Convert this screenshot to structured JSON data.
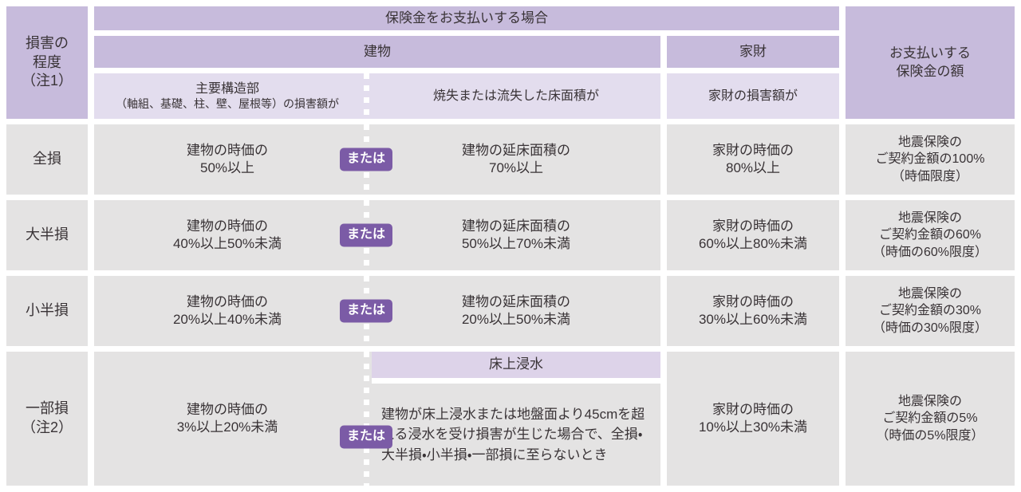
{
  "colors": {
    "header_purple": "#c7bbdc",
    "subheader_purple": "#e3ddee",
    "flood_header_purple": "#ddd3e9",
    "cell_gray": "#e4e3e3",
    "badge_purple": "#7b5ba6",
    "text": "#393336"
  },
  "header": {
    "damage_degree": "損害の\n程度\n（注1）",
    "payment_case": "保険金をお支払いする場合",
    "building": "建物",
    "household": "家財",
    "building_sub_main": "主要構造部",
    "building_sub_detail": "（軸組、基礎、柱、壁、屋根等）の損害額が",
    "building_sub_floor": "焼失または流失した床面積が",
    "household_sub": "家財の損害額が",
    "payout": "お支払いする\n保険金の額"
  },
  "or_label": "または",
  "rows": [
    {
      "label": "全損",
      "building_damage": "建物の時価の\n50%以上",
      "floor_area": "建物の延床面積の\n70%以上",
      "household": "家財の時価の\n80%以上",
      "payout": "地震保険の\nご契約金額の100%\n（時価限度）"
    },
    {
      "label": "大半損",
      "building_damage": "建物の時価の\n40%以上50%未満",
      "floor_area": "建物の延床面積の\n50%以上70%未満",
      "household": "家財の時価の\n60%以上80%未満",
      "payout": "地震保険の\nご契約金額の60%\n（時価の60%限度）"
    },
    {
      "label": "小半損",
      "building_damage": "建物の時価の\n20%以上40%未満",
      "floor_area": "建物の延床面積の\n20%以上50%未満",
      "household": "家財の時価の\n30%以上60%未満",
      "payout": "地震保険の\nご契約金額の30%\n（時価の30%限度）"
    },
    {
      "label": "一部損\n（注2）",
      "building_damage": "建物の時価の\n3%以上20%未満",
      "flood_header": "床上浸水",
      "flood_text": "建物が床上浸水または地盤面より45cmを超える浸水を受け損害が生じた場合で、全損・大半損・小半損・一部損に至らないとき",
      "household": "家財の時価の\n10%以上30%未満",
      "payout": "地震保険の\nご契約金額の5%\n（時価の5%限度）"
    }
  ]
}
